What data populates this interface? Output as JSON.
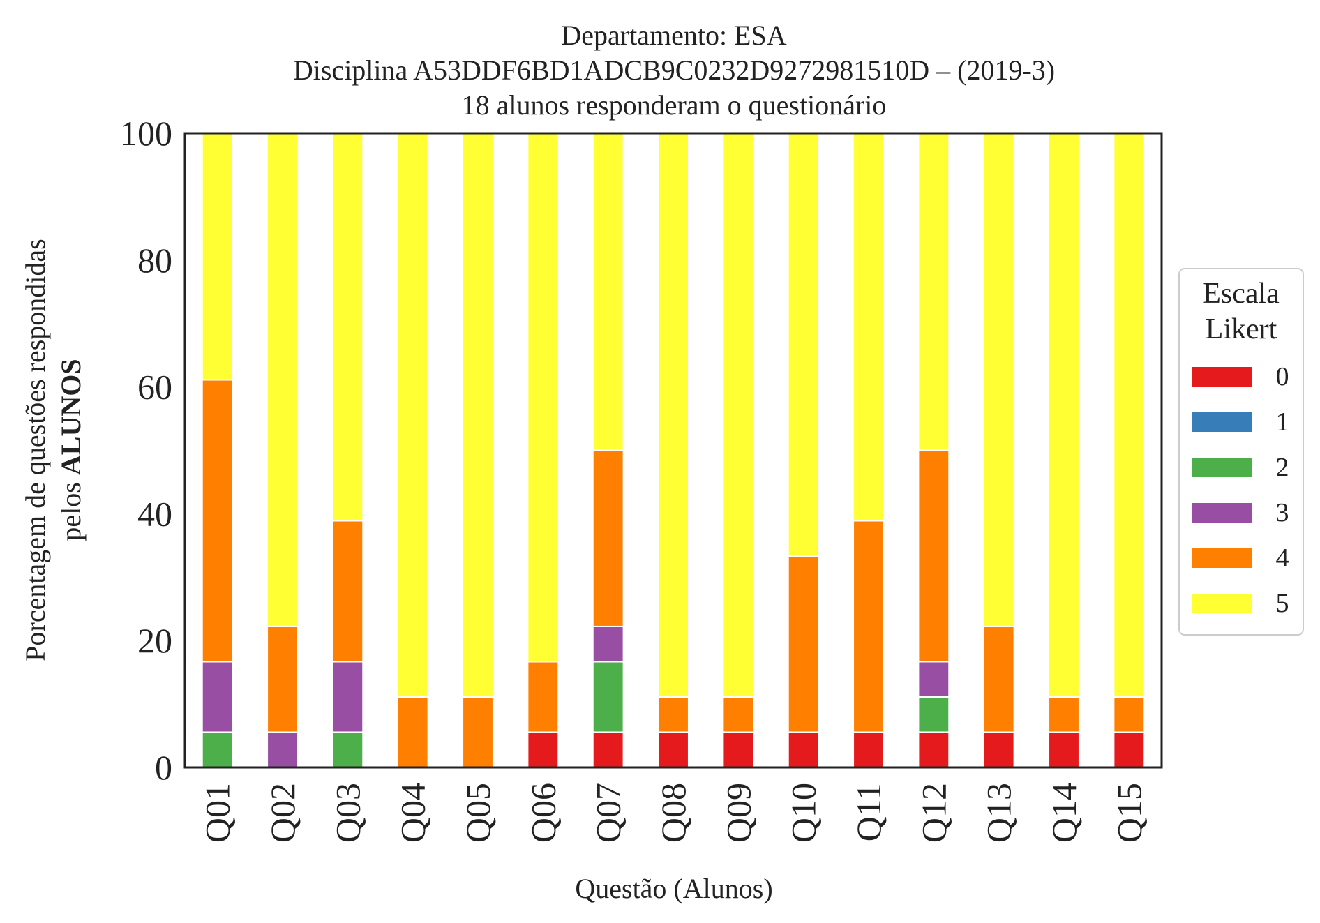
{
  "chart_data": {
    "type": "bar",
    "stacked": true,
    "title_lines": [
      "Departamento: ESA",
      "Disciplina A53DDF6BD1ADCB9C0232D9272981510D – (2019-3)",
      "18 alunos responderam o questionário"
    ],
    "xlabel": "Questão (Alunos)",
    "ylabel_line1": "Porcentagem de questões respondidas",
    "ylabel_line2_prefix": "pelos ",
    "ylabel_line2_bold": "ALUNOS",
    "ylim": [
      0,
      100
    ],
    "yticks": [
      "0",
      "20",
      "40",
      "60",
      "80",
      "100"
    ],
    "grid": false,
    "legend": {
      "title_line1": "Escala",
      "title_line2": "Likert",
      "placement": "right-center"
    },
    "categories": [
      "Q01",
      "Q02",
      "Q03",
      "Q04",
      "Q05",
      "Q06",
      "Q07",
      "Q08",
      "Q09",
      "Q10",
      "Q11",
      "Q12",
      "Q13",
      "Q14",
      "Q15"
    ],
    "series": [
      {
        "name": "0",
        "color": "#e41a1c",
        "values": [
          0,
          0,
          0,
          0,
          0,
          5.56,
          5.56,
          5.56,
          5.56,
          5.56,
          5.56,
          5.56,
          5.56,
          5.56,
          5.56
        ]
      },
      {
        "name": "1",
        "color": "#377eb8",
        "values": [
          0,
          0,
          0,
          0,
          0,
          0,
          0,
          0,
          0,
          0,
          0,
          0,
          0,
          0,
          0
        ]
      },
      {
        "name": "2",
        "color": "#4daf4a",
        "values": [
          5.56,
          0,
          5.56,
          0,
          0,
          0,
          11.11,
          0,
          0,
          0,
          0,
          5.56,
          0,
          0,
          0
        ]
      },
      {
        "name": "3",
        "color": "#984ea3",
        "values": [
          11.11,
          5.56,
          11.11,
          0,
          0,
          0,
          5.56,
          0,
          0,
          0,
          0,
          5.56,
          0,
          0,
          0
        ]
      },
      {
        "name": "4",
        "color": "#ff7f00",
        "values": [
          44.44,
          16.67,
          22.22,
          11.11,
          11.11,
          11.11,
          27.78,
          5.56,
          5.56,
          27.78,
          33.33,
          33.33,
          16.67,
          5.56,
          5.56
        ]
      },
      {
        "name": "5",
        "color": "#ffff33",
        "values": [
          38.89,
          77.78,
          61.11,
          88.89,
          88.89,
          83.33,
          50.0,
          88.89,
          88.89,
          66.67,
          61.11,
          50.0,
          77.78,
          88.89,
          88.89
        ]
      }
    ]
  }
}
